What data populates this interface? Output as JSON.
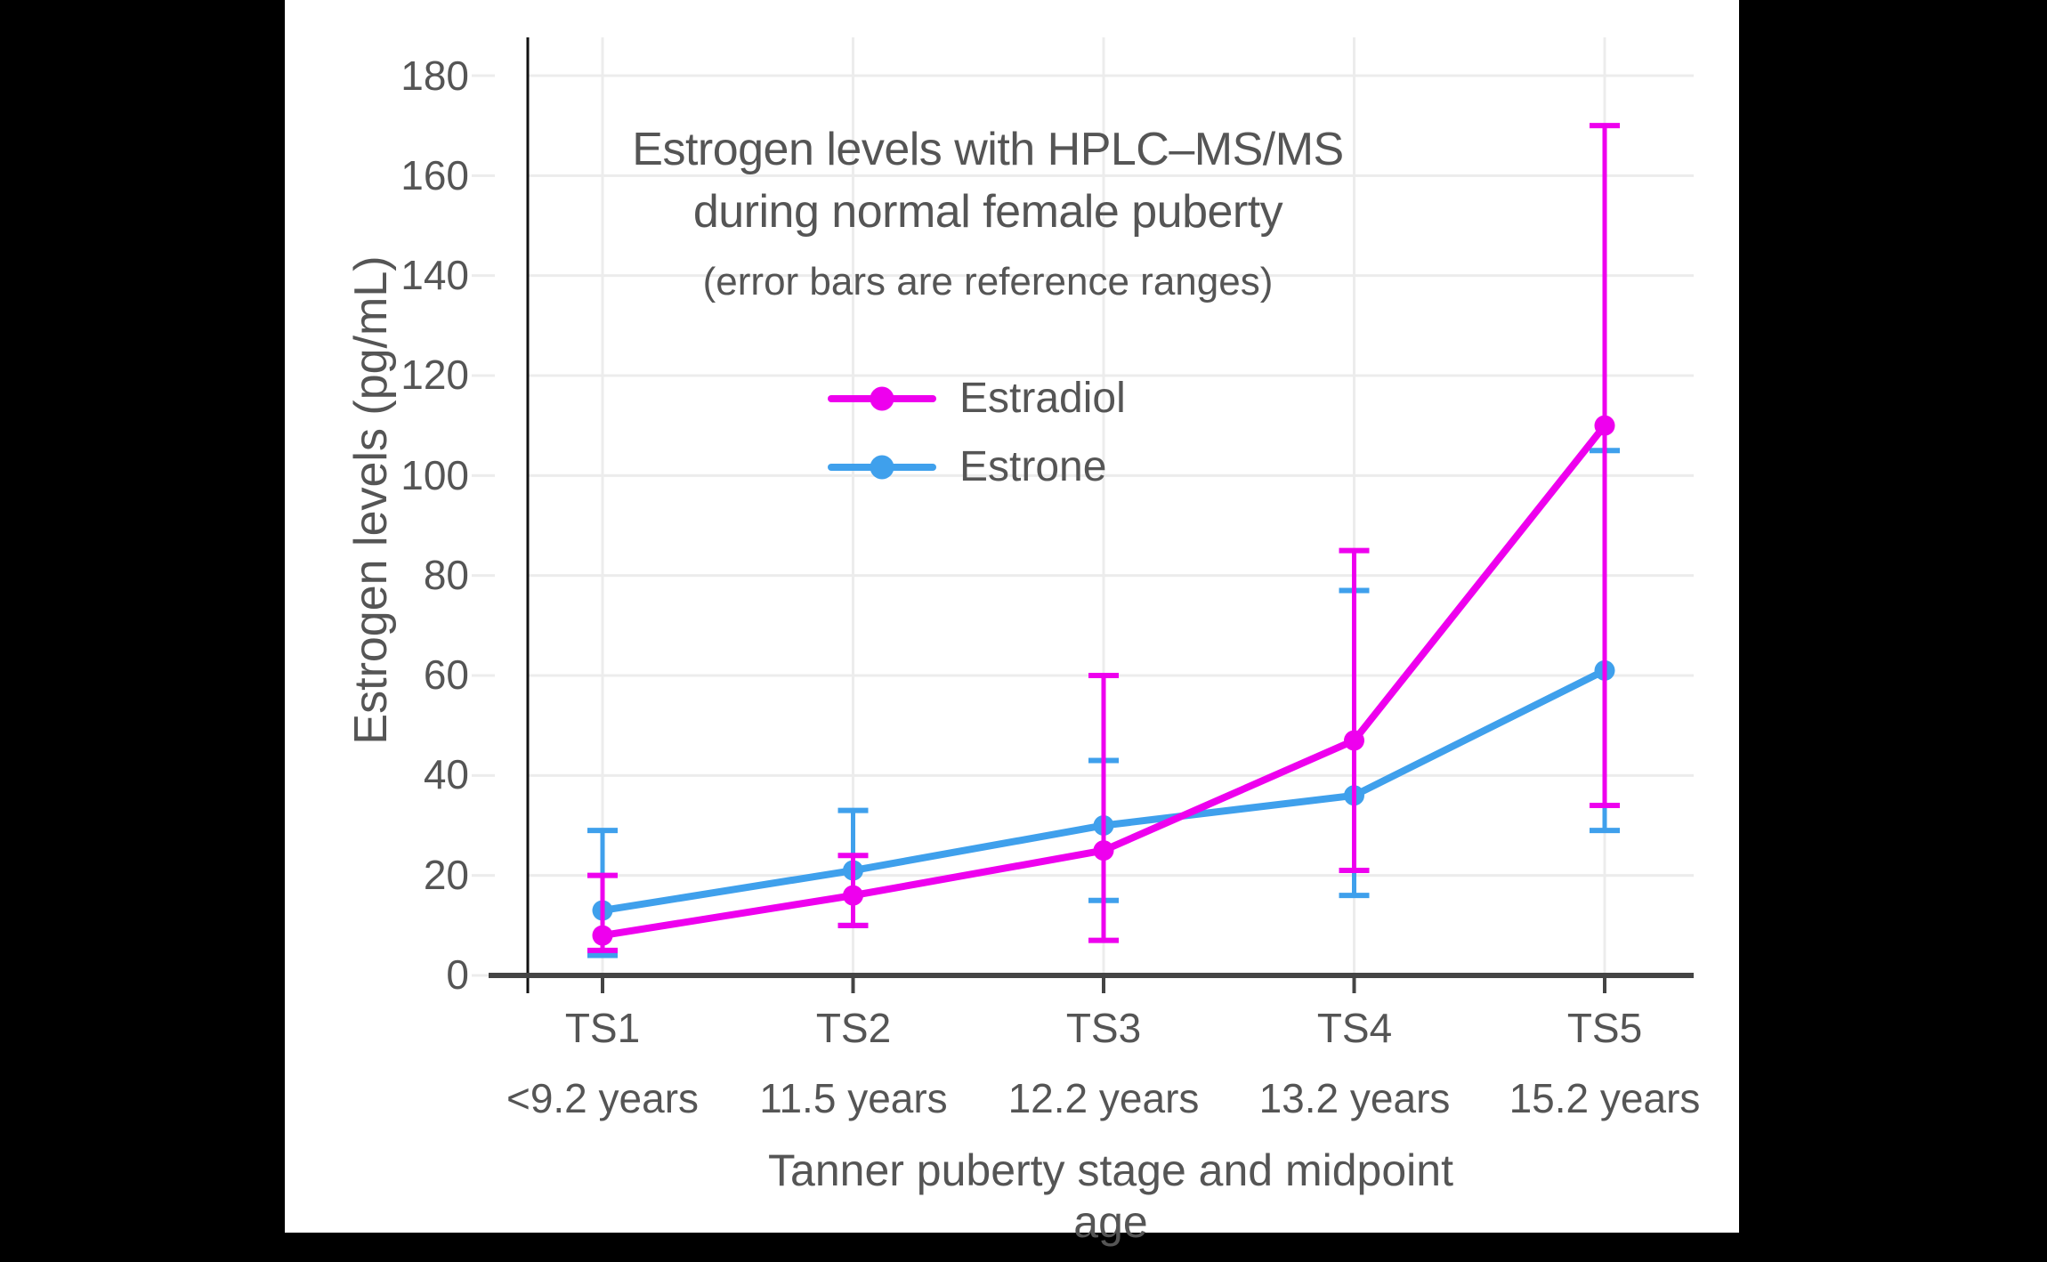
{
  "chart_data": {
    "type": "line",
    "title": "Estrogen levels with HPLC–MS/MS",
    "title_line2": "during normal female puberty",
    "subtitle": "(error bars are reference ranges)",
    "xlabel": "Tanner puberty stage and midpoint age",
    "ylabel": "Estrogen levels (pg/mL)",
    "categories": [
      "TS1",
      "TS2",
      "TS3",
      "TS4",
      "TS5"
    ],
    "category_ages": [
      "<9.2 years",
      "11.5 years",
      "12.2 years",
      "13.2 years",
      "15.2 years"
    ],
    "y_ticks": [
      "0",
      "20",
      "40",
      "60",
      "80",
      "100",
      "120",
      "140",
      "160",
      "180"
    ],
    "ylim": [
      0,
      188
    ],
    "grid": true,
    "legend_position": "upper-center-inside",
    "error_bars": "reference ranges",
    "series": [
      {
        "name": "Estrone",
        "color": "#3FA0EC",
        "values": [
          13,
          21,
          30,
          36,
          61
        ],
        "err_low": [
          4,
          10,
          15,
          16,
          29
        ],
        "err_high": [
          29,
          33,
          43,
          77,
          105
        ]
      },
      {
        "name": "Estradiol",
        "color": "#EE00EE",
        "values": [
          8,
          16,
          25,
          47,
          110
        ],
        "err_low": [
          5,
          10,
          7,
          21,
          34
        ],
        "err_high": [
          20,
          24,
          60,
          85,
          170
        ]
      }
    ],
    "legend_order": [
      "Estradiol",
      "Estrone"
    ],
    "colors": {
      "grid": "#ECECEC",
      "axis": "#444444",
      "spine": "#111111",
      "text": "#555555",
      "background": "#FFFFFF",
      "page_background": "#000000"
    }
  }
}
